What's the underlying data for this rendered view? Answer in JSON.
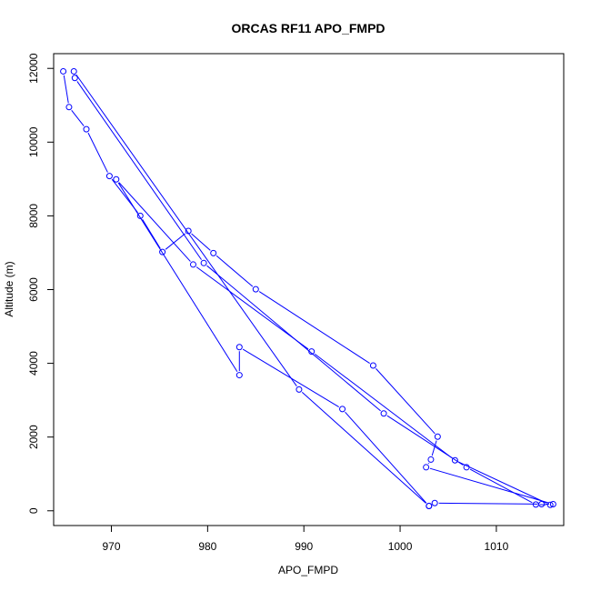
{
  "chart_data": {
    "type": "line",
    "title": "ORCAS RF11 APO_FMPD",
    "xlabel": "APO_FMPD",
    "ylabel": "Altitude (m)",
    "xlim": [
      964,
      1017
    ],
    "ylim": [
      -400,
      12400
    ],
    "xticks": [
      970,
      980,
      990,
      1000,
      1010
    ],
    "yticks": [
      0,
      2000,
      4000,
      6000,
      8000,
      10000,
      12000
    ],
    "grid": false,
    "series": [
      {
        "color": "#0000ff",
        "marker": "open-circle",
        "points": [
          [
            965.0,
            11920
          ],
          [
            965.6,
            10950
          ],
          [
            967.4,
            10350
          ],
          [
            969.8,
            9080
          ],
          [
            973.0,
            8000
          ],
          [
            975.3,
            7020
          ],
          [
            978.0,
            7590
          ],
          [
            980.6,
            6990
          ],
          [
            985.0,
            6010
          ],
          [
            997.2,
            3940
          ],
          [
            1003.9,
            2010
          ],
          [
            1003.2,
            1390
          ],
          [
            1002.7,
            1180
          ],
          [
            1015.9,
            180
          ],
          [
            1014.7,
            180
          ],
          [
            1003.6,
            210
          ],
          [
            1003.0,
            130
          ],
          [
            994.0,
            2760
          ],
          [
            983.3,
            4440
          ],
          [
            983.3,
            3680
          ],
          [
            970.5,
            8990
          ],
          [
            978.5,
            6680
          ],
          [
            990.8,
            4320
          ],
          [
            1005.7,
            1370
          ],
          [
            1015.6,
            160
          ],
          [
            1014.1,
            170
          ],
          [
            1006.9,
            1180
          ],
          [
            998.3,
            2640
          ],
          [
            979.6,
            6720
          ],
          [
            966.2,
            11740
          ],
          [
            966.1,
            11920
          ],
          [
            989.5,
            3290
          ],
          [
            1003.0,
            130
          ]
        ]
      }
    ]
  }
}
